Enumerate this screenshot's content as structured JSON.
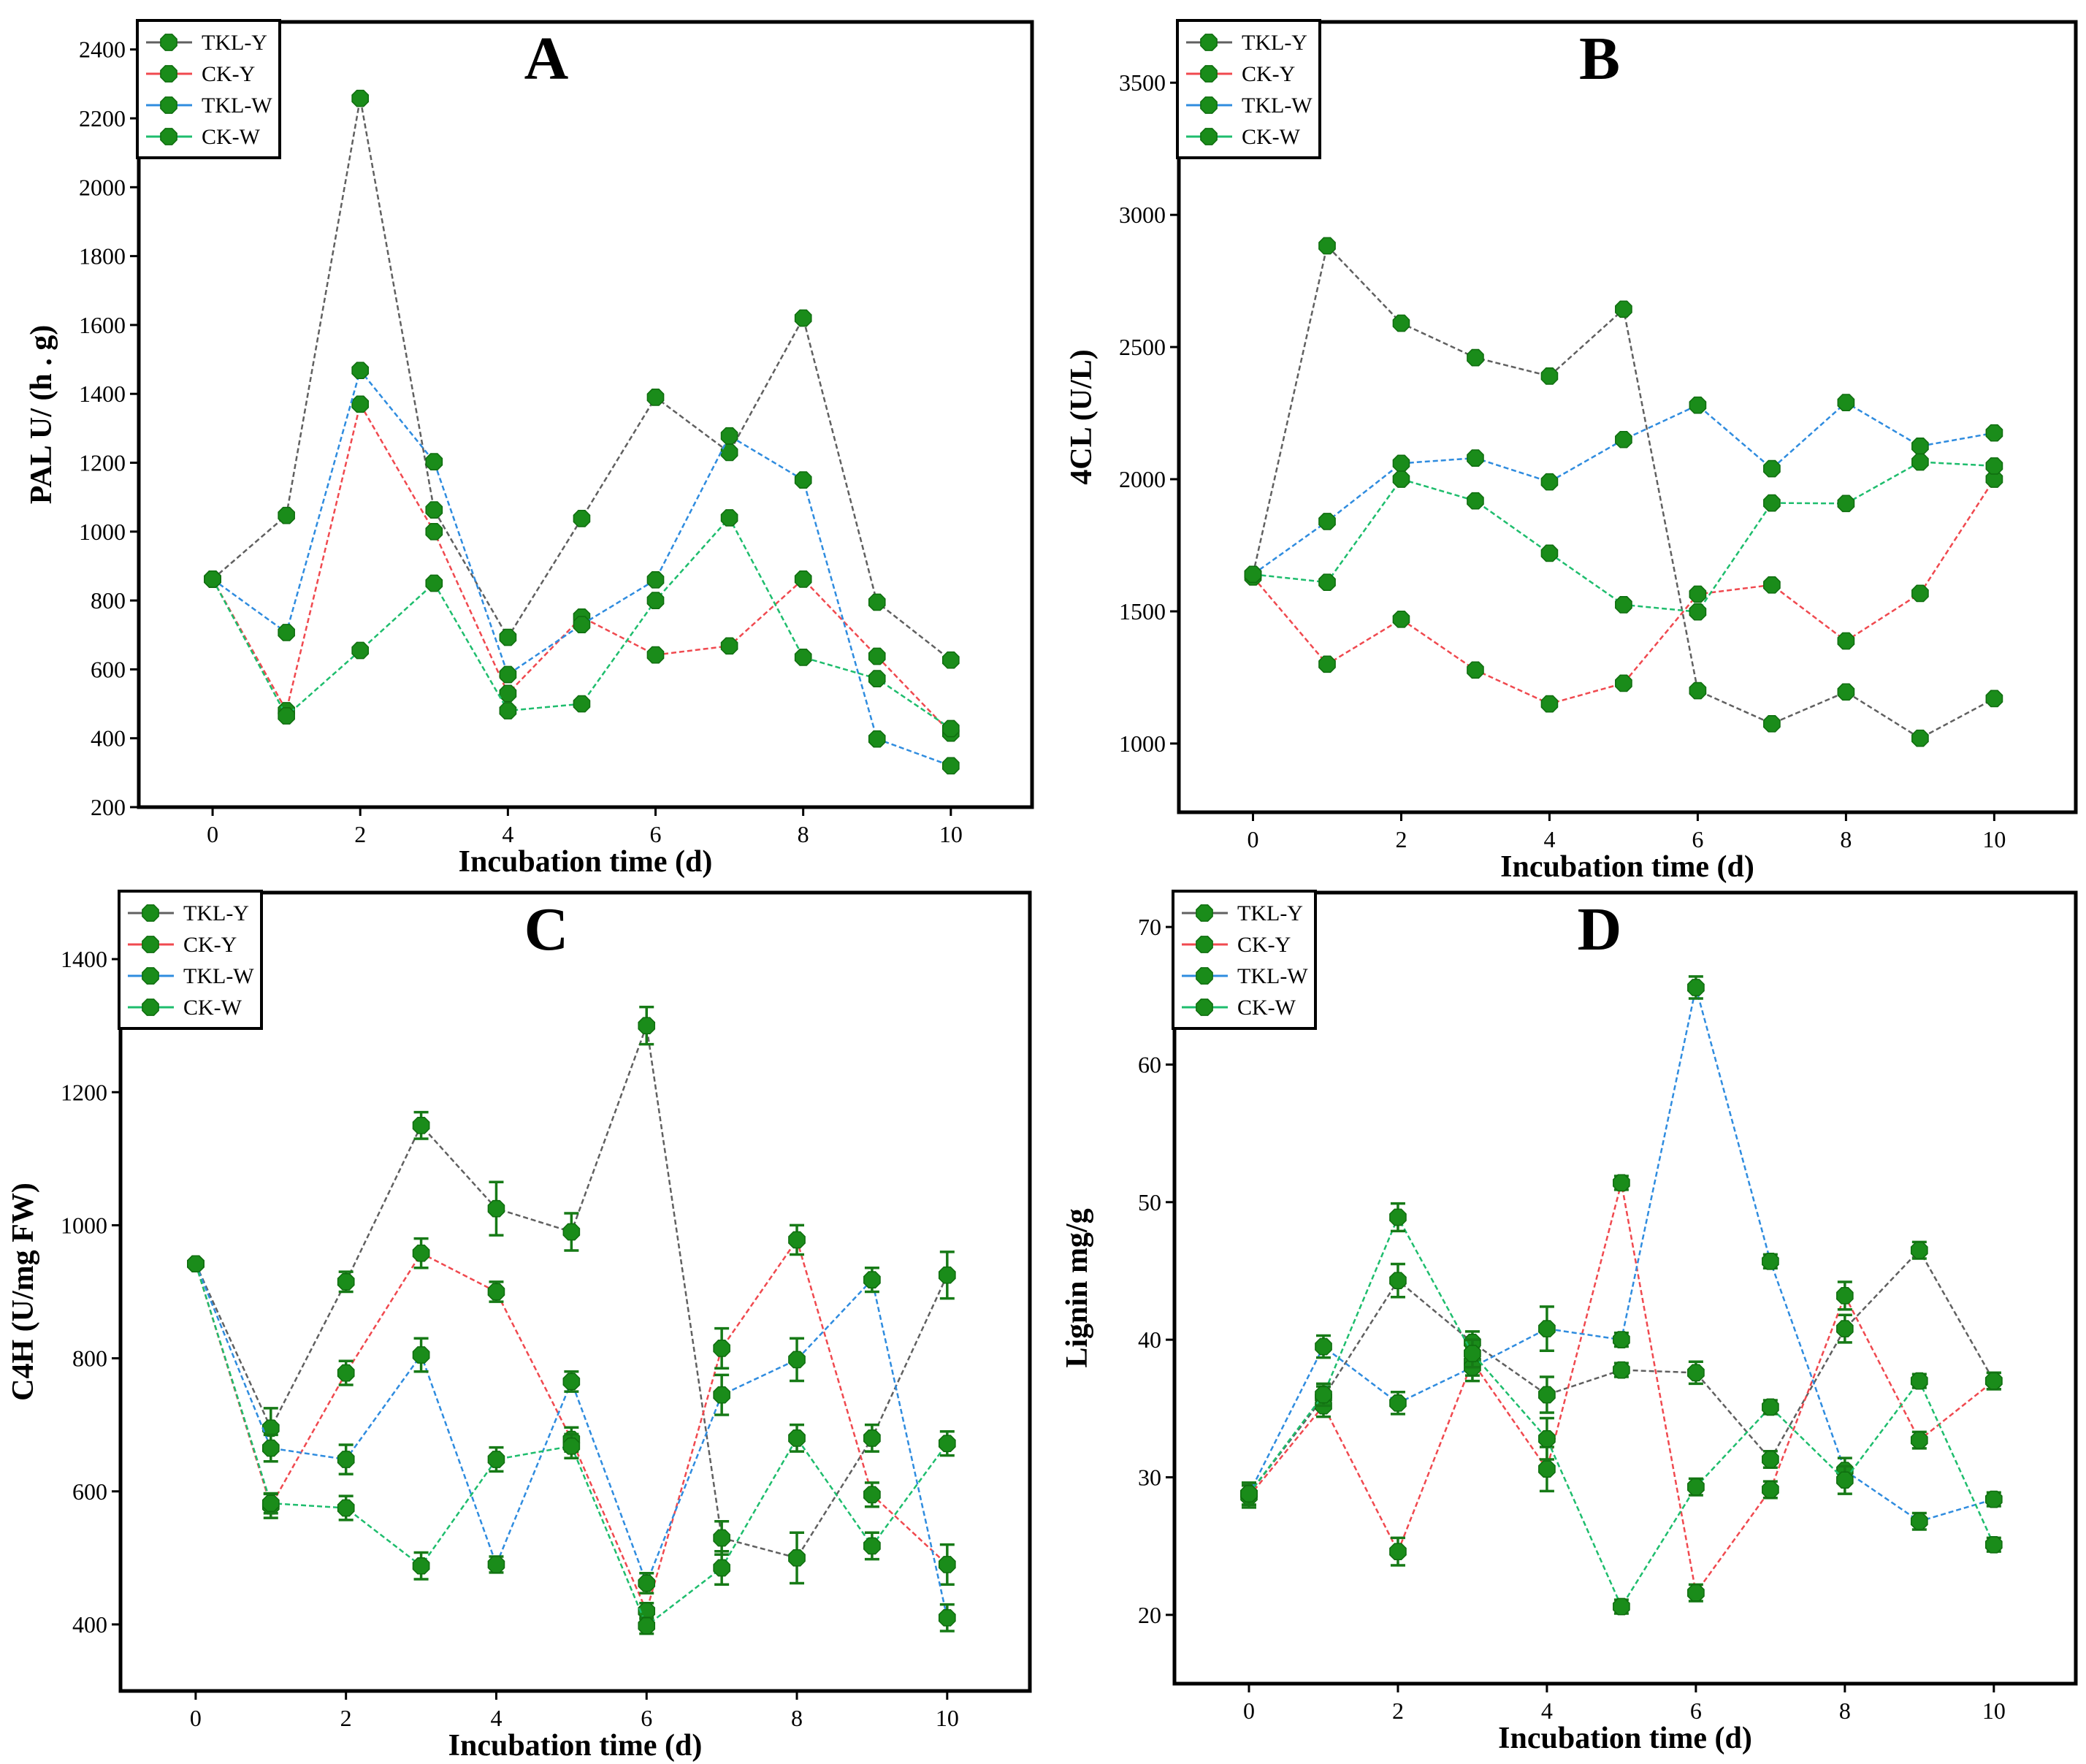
{
  "colors": {
    "TKL-Y": "#606060",
    "CK-Y": "#f0494f",
    "TKL-W": "#2f8cdf",
    "CK-W": "#1ebd6d",
    "marker": "#1a8c1a"
  },
  "chart_data": [
    {
      "type": "line",
      "panel": "A",
      "xlabel": "Incubation time (d)",
      "ylabel": "PAL U/ (h . g)",
      "x": [
        0,
        1,
        2,
        3,
        4,
        5,
        6,
        7,
        8,
        9,
        10
      ],
      "xticks": [
        0,
        2,
        4,
        6,
        8,
        10
      ],
      "xlim": [
        -1.0,
        11.1
      ],
      "ylim": [
        200,
        2480
      ],
      "yticks": [
        200,
        400,
        600,
        800,
        1000,
        1200,
        1400,
        1600,
        1800,
        2000,
        2200,
        2400
      ],
      "legend": [
        "TKL-Y",
        "CK-Y",
        "TKL-W",
        "CK-W"
      ],
      "series": [
        {
          "name": "TKL-Y",
          "values": [
            862,
            1047,
            2258,
            1063,
            693,
            1038,
            1390,
            1230,
            1620,
            795,
            627
          ]
        },
        {
          "name": "CK-Y",
          "values": [
            862,
            480,
            1370,
            1000,
            530,
            752,
            642,
            668,
            862,
            638,
            415
          ]
        },
        {
          "name": "TKL-W",
          "values": [
            862,
            707,
            1468,
            1203,
            585,
            730,
            860,
            1278,
            1150,
            398,
            320
          ]
        },
        {
          "name": "CK-W",
          "values": [
            862,
            465,
            655,
            850,
            480,
            500,
            800,
            1040,
            635,
            573,
            428
          ]
        }
      ]
    },
    {
      "type": "line",
      "panel": "B",
      "xlabel": "Incubation time (d)",
      "ylabel": "4CL (U/L)",
      "x": [
        0,
        1,
        2,
        3,
        4,
        5,
        6,
        7,
        8,
        9,
        10
      ],
      "xticks": [
        0,
        2,
        4,
        6,
        8,
        10
      ],
      "xlim": [
        -1.0,
        11.1
      ],
      "ylim": [
        740,
        3730
      ],
      "yticks": [
        1000,
        1500,
        2000,
        2500,
        3000,
        3500
      ],
      "legend": [
        "TKL-Y",
        "CK-Y",
        "TKL-W",
        "CK-W"
      ],
      "series": [
        {
          "name": "TKL-Y",
          "values": [
            1640,
            2883,
            2590,
            2460,
            2390,
            2643,
            1200,
            1075,
            1195,
            1020,
            1170
          ]
        },
        {
          "name": "CK-Y",
          "values": [
            1630,
            1300,
            1470,
            1278,
            1150,
            1228,
            1565,
            1600,
            1388,
            1568,
            2000
          ]
        },
        {
          "name": "TKL-W",
          "values": [
            1640,
            1840,
            2060,
            2080,
            1990,
            2150,
            2280,
            2040,
            2290,
            2125,
            2175
          ]
        },
        {
          "name": "CK-W",
          "values": [
            1640,
            1610,
            2000,
            1918,
            1720,
            1525,
            1498,
            1910,
            1908,
            2065,
            2050
          ]
        }
      ]
    },
    {
      "type": "line",
      "panel": "C",
      "xlabel": "Incubation time (d)",
      "ylabel": "C4H (U/mg FW)",
      "x": [
        0,
        1,
        2,
        3,
        4,
        5,
        6,
        7,
        8,
        9,
        10
      ],
      "xticks": [
        0,
        2,
        4,
        6,
        8,
        10
      ],
      "xlim": [
        -1.0,
        11.1
      ],
      "ylim": [
        300,
        1500
      ],
      "yticks": [
        400,
        600,
        800,
        1000,
        1200,
        1400
      ],
      "legend": [
        "TKL-Y",
        "CK-Y",
        "TKL-W",
        "CK-W"
      ],
      "series": [
        {
          "name": "TKL-Y",
          "values": [
            942,
            695,
            915,
            1150,
            1025,
            990,
            1300,
            530,
            500,
            680,
            925
          ],
          "errors": [
            0,
            30,
            15,
            20,
            40,
            28,
            28,
            25,
            38,
            20,
            35
          ]
        },
        {
          "name": "CK-Y",
          "values": [
            942,
            578,
            778,
            958,
            900,
            678,
            420,
            815,
            978,
            595,
            490
          ],
          "errors": [
            0,
            18,
            18,
            22,
            15,
            18,
            12,
            30,
            22,
            18,
            30
          ]
        },
        {
          "name": "TKL-W",
          "values": [
            942,
            665,
            648,
            805,
            490,
            765,
            462,
            745,
            798,
            918,
            410
          ],
          "errors": [
            0,
            20,
            22,
            25,
            12,
            15,
            15,
            30,
            32,
            18,
            20
          ]
        },
        {
          "name": "CK-W",
          "values": [
            942,
            582,
            575,
            488,
            648,
            668,
            398,
            485,
            680,
            518,
            672
          ],
          "errors": [
            0,
            15,
            18,
            20,
            18,
            18,
            12,
            25,
            20,
            20,
            18
          ]
        }
      ]
    },
    {
      "type": "line",
      "panel": "D",
      "xlabel": "Incubation time (d)",
      "ylabel": "Lignin mg/g",
      "x": [
        0,
        1,
        2,
        3,
        4,
        5,
        6,
        7,
        8,
        9,
        10
      ],
      "xticks": [
        0,
        2,
        4,
        6,
        8,
        10
      ],
      "xlim": [
        -1.0,
        11.1
      ],
      "ylim": [
        15,
        72.5
      ],
      "yticks": [
        20,
        30,
        40,
        50,
        60,
        70
      ],
      "legend": [
        "TKL-Y",
        "CK-Y",
        "TKL-W",
        "CK-W"
      ],
      "series": [
        {
          "name": "TKL-Y",
          "values": [
            28.8,
            35.8,
            44.3,
            39.8,
            36.0,
            37.8,
            37.6,
            31.3,
            40.8,
            46.5,
            37.0
          ],
          "errors": [
            0.8,
            0.8,
            1.2,
            0.8,
            1.3,
            0.5,
            0.8,
            0.6,
            1.0,
            0.6,
            0.6
          ]
        },
        {
          "name": "CK-Y",
          "values": [
            28.6,
            35.2,
            24.6,
            38.4,
            30.6,
            51.4,
            21.6,
            29.1,
            43.2,
            32.7,
            37.0
          ],
          "errors": [
            0.8,
            0.8,
            1.0,
            1.0,
            1.6,
            0.5,
            0.6,
            0.6,
            1.0,
            0.6,
            0.6
          ]
        },
        {
          "name": "TKL-W",
          "values": [
            28.8,
            39.5,
            35.4,
            38.0,
            40.8,
            40.0,
            65.6,
            45.7,
            30.5,
            26.8,
            28.4
          ],
          "errors": [
            0.8,
            0.8,
            0.8,
            1.0,
            1.6,
            0.5,
            0.8,
            0.5,
            0.9,
            0.6,
            0.5
          ]
        },
        {
          "name": "CK-W",
          "values": [
            28.8,
            36.0,
            48.9,
            39.0,
            32.8,
            20.6,
            29.3,
            35.1,
            29.8,
            37.0,
            25.1
          ],
          "errors": [
            0.8,
            0.8,
            1.0,
            1.0,
            1.5,
            0.5,
            0.6,
            0.5,
            1.0,
            0.5,
            0.5
          ]
        }
      ]
    }
  ]
}
